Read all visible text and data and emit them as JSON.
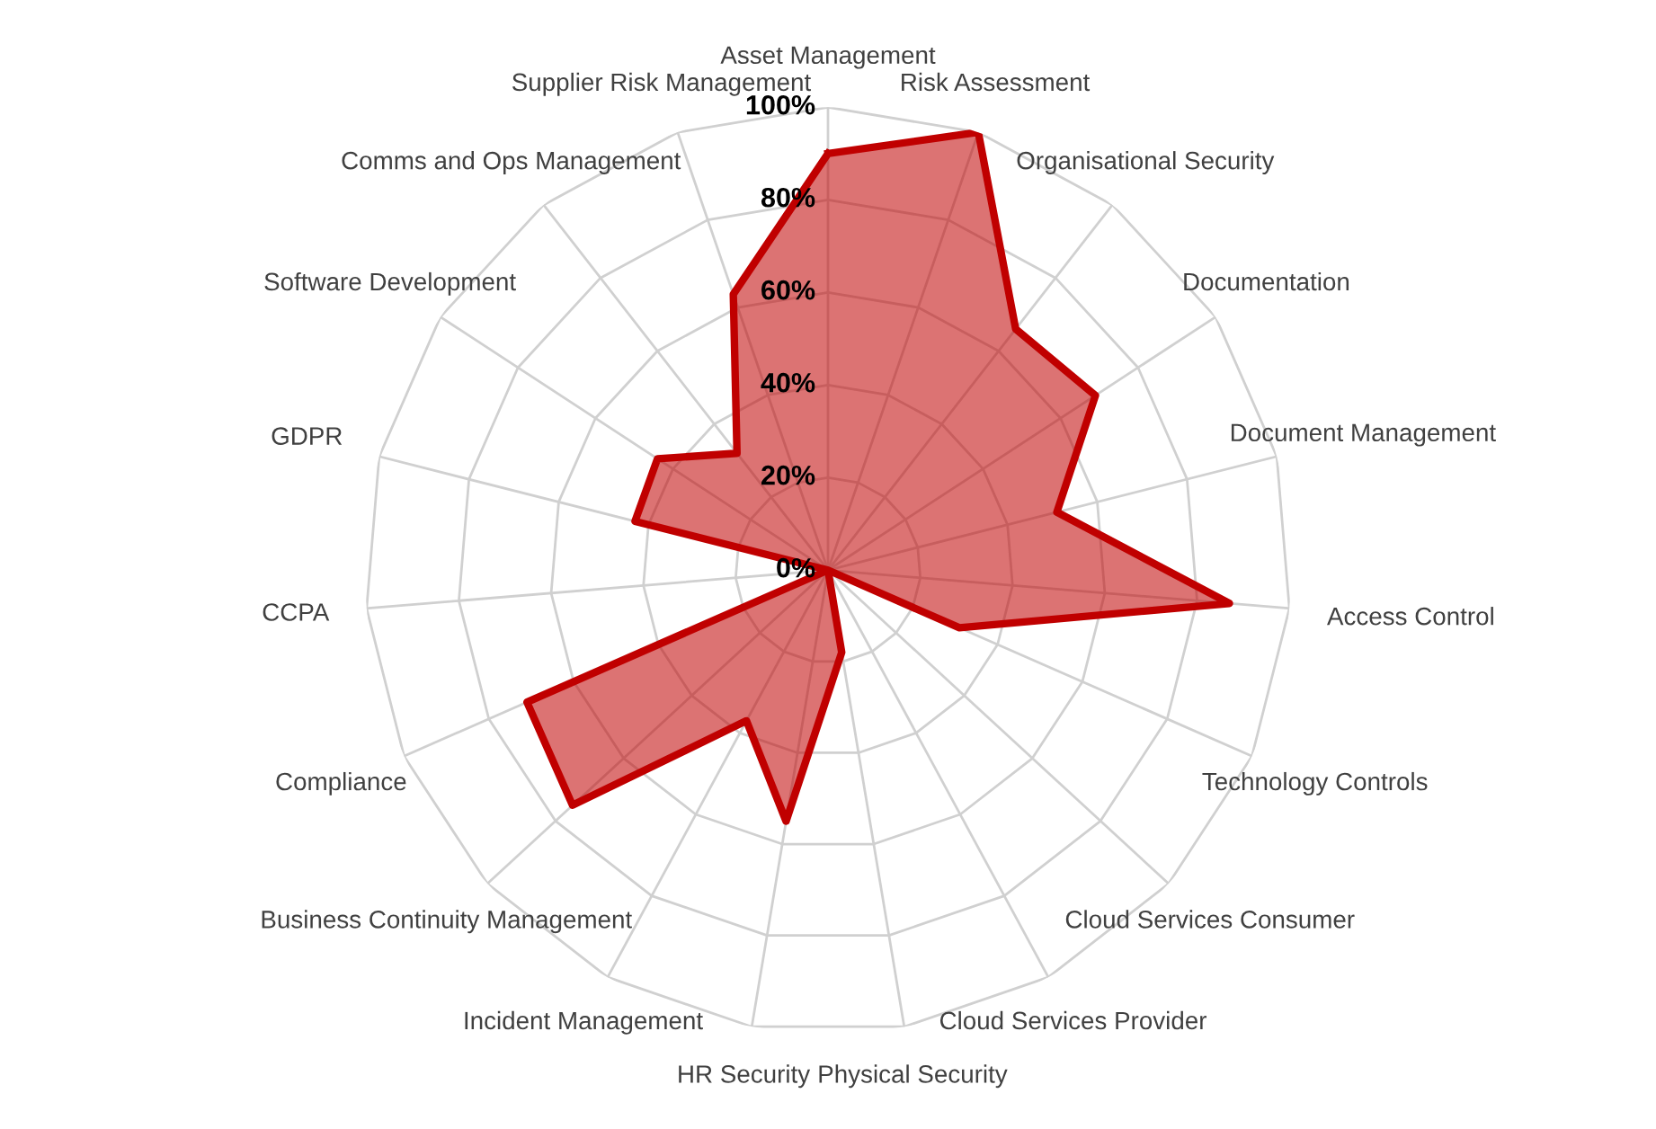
{
  "chart_data": {
    "type": "radar",
    "categories": [
      "Asset Management",
      "Risk Assessment",
      "Organisational Security",
      "Documentation",
      "Document Management",
      "Access Control",
      "Technology Controls",
      "Cloud Services Consumer",
      "Cloud Services Provider",
      "Physical Security",
      "HR Security",
      "Incident Management",
      "Business Continuity Management",
      "Compliance",
      "CCPA",
      "GDPR",
      "Software Development",
      "Comms and Ops Management",
      "Supplier Risk Management"
    ],
    "series": [
      {
        "color": "#c00000",
        "values": [
          90,
          100,
          66,
          69,
          51,
          87,
          31,
          0,
          0,
          18,
          55,
          37,
          75,
          71,
          0,
          43,
          44,
          32,
          63
        ]
      }
    ],
    "ylim": [
      0,
      100
    ],
    "yticks": [
      {
        "value": 0,
        "label": "0%"
      },
      {
        "value": 20,
        "label": "20%"
      },
      {
        "value": 40,
        "label": "40%"
      },
      {
        "value": 60,
        "label": "60%"
      },
      {
        "value": 80,
        "label": "80%"
      },
      {
        "value": 100,
        "label": "100%"
      }
    ],
    "grid": true,
    "marker": "none",
    "line_style": "solid"
  }
}
